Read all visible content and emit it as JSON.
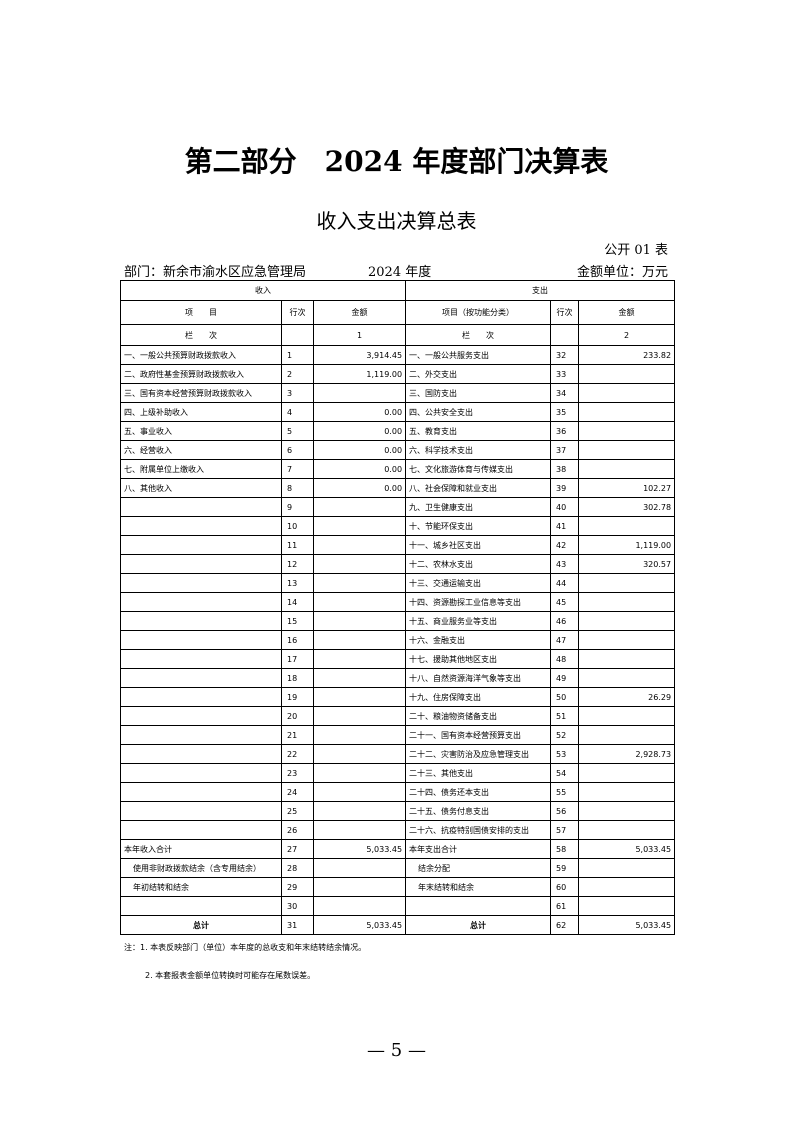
{
  "header": {
    "title": "第二部分　2024 年度部门决算表",
    "subtitle": "收入支出决算总表",
    "form_no": "公开 01 表",
    "department": "部门：新余市渝水区应急管理局",
    "year": "2024 年度",
    "unit": "金额单位：万元"
  },
  "table": {
    "group_headers": [
      "收入",
      "支出"
    ],
    "column_headers": [
      "项　　目",
      "行次",
      "金额",
      "项目（按功能分类）",
      "行次",
      "金额"
    ],
    "index_row": [
      "栏　　次",
      null,
      "1",
      "栏　　次",
      null,
      "2"
    ],
    "rows": [
      [
        "一、一般公共预算财政拨款收入",
        1,
        "3,914.45",
        "一、一般公共服务支出",
        32,
        "233.82"
      ],
      [
        "二、政府性基金预算财政拨款收入",
        2,
        "1,119.00",
        "二、外交支出",
        33,
        null
      ],
      [
        "三、国有资本经营预算财政拨款收入",
        3,
        null,
        "三、国防支出",
        34,
        null
      ],
      [
        "四、上级补助收入",
        4,
        "0.00",
        "四、公共安全支出",
        35,
        null
      ],
      [
        "五、事业收入",
        5,
        "0.00",
        "五、教育支出",
        36,
        null
      ],
      [
        "六、经营收入",
        6,
        "0.00",
        "六、科学技术支出",
        37,
        null
      ],
      [
        "七、附属单位上缴收入",
        7,
        "0.00",
        "七、文化旅游体育与传媒支出",
        38,
        null
      ],
      [
        "八、其他收入",
        8,
        "0.00",
        "八、社会保障和就业支出",
        39,
        "102.27"
      ],
      [
        null,
        9,
        null,
        "九、卫生健康支出",
        40,
        "302.78"
      ],
      [
        null,
        10,
        null,
        "十、节能环保支出",
        41,
        null
      ],
      [
        null,
        11,
        null,
        "十一、城乡社区支出",
        42,
        "1,119.00"
      ],
      [
        null,
        12,
        null,
        "十二、农林水支出",
        43,
        "320.57"
      ],
      [
        null,
        13,
        null,
        "十三、交通运输支出",
        44,
        null
      ],
      [
        null,
        14,
        null,
        "十四、资源勘探工业信息等支出",
        45,
        null
      ],
      [
        null,
        15,
        null,
        "十五、商业服务业等支出",
        46,
        null
      ],
      [
        null,
        16,
        null,
        "十六、金融支出",
        47,
        null
      ],
      [
        null,
        17,
        null,
        "十七、援助其他地区支出",
        48,
        null
      ],
      [
        null,
        18,
        null,
        "十八、自然资源海洋气象等支出",
        49,
        null
      ],
      [
        null,
        19,
        null,
        "十九、住房保障支出",
        50,
        "26.29"
      ],
      [
        null,
        20,
        null,
        "二十、粮油物资储备支出",
        51,
        null
      ],
      [
        null,
        21,
        null,
        "二十一、国有资本经营预算支出",
        52,
        null
      ],
      [
        null,
        22,
        null,
        "二十二、灾害防治及应急管理支出",
        53,
        "2,928.73"
      ],
      [
        null,
        23,
        null,
        "二十三、其他支出",
        54,
        null
      ],
      [
        null,
        24,
        null,
        "二十四、债务还本支出",
        55,
        null
      ],
      [
        null,
        25,
        null,
        "二十五、债务付息支出",
        56,
        null
      ],
      [
        null,
        26,
        null,
        "二十六、抗疫特别国债安排的支出",
        57,
        null
      ],
      [
        "本年收入合计",
        27,
        "5,033.45",
        "本年支出合计",
        58,
        "5,033.45"
      ],
      [
        "使用非财政拨款结余（含专用结余）",
        28,
        null,
        "结余分配",
        59,
        null
      ],
      [
        "年初结转和结余",
        29,
        null,
        "年末结转和结余",
        60,
        null
      ],
      [
        null,
        30,
        null,
        null,
        61,
        null
      ],
      [
        "总计",
        31,
        "5,033.45",
        "总计",
        62,
        "5,033.45"
      ]
    ]
  },
  "notes": [
    "注：1. 本表反映部门（单位）本年度的总收支和年末结转结余情况。",
    "2. 本套报表金额单位转换时可能存在尾数误差。"
  ],
  "page_number": "— 5 —"
}
